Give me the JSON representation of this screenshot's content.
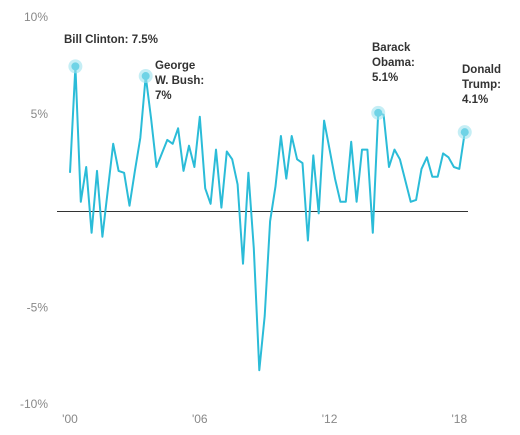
{
  "chart_data": {
    "type": "line",
    "x": [
      2000,
      2000.25,
      2000.5,
      2000.75,
      2001,
      2001.25,
      2001.5,
      2001.75,
      2002,
      2002.25,
      2002.5,
      2002.75,
      2003,
      2003.25,
      2003.5,
      2003.75,
      2004,
      2004.25,
      2004.5,
      2004.75,
      2005,
      2005.25,
      2005.5,
      2005.75,
      2006,
      2006.25,
      2006.5,
      2006.75,
      2007,
      2007.25,
      2007.5,
      2007.75,
      2008,
      2008.25,
      2008.5,
      2008.75,
      2009,
      2009.25,
      2009.5,
      2009.75,
      2010,
      2010.25,
      2010.5,
      2010.75,
      2011,
      2011.25,
      2011.5,
      2011.75,
      2012,
      2012.25,
      2012.5,
      2012.75,
      2013,
      2013.25,
      2013.5,
      2013.75,
      2014,
      2014.25,
      2014.5,
      2014.75,
      2015,
      2015.25,
      2015.5,
      2015.75,
      2016,
      2016.25,
      2016.5,
      2016.75,
      2017,
      2017.25,
      2017.5,
      2017.75,
      2018,
      2018.25
    ],
    "series": [
      {
        "color": "#2bbcd8",
        "values": [
          2,
          7.5,
          0.5,
          2.3,
          -1.1,
          2.1,
          -1.3,
          1.1,
          3.5,
          2.1,
          2.0,
          0.3,
          2.1,
          3.8,
          7,
          4.8,
          2.3,
          3.0,
          3.7,
          3.5,
          4.3,
          2.1,
          3.4,
          2.3,
          4.9,
          1.2,
          0.4,
          3.2,
          0.2,
          3.1,
          2.7,
          1.4,
          -2.7,
          2.0,
          -1.9,
          -8.2,
          -5.4,
          -0.5,
          1.3,
          3.9,
          1.7,
          3.9,
          2.7,
          2.5,
          -1.5,
          2.9,
          -0.1,
          4.7,
          3.2,
          1.7,
          0.5,
          0.5,
          3.6,
          0.5,
          3.2,
          3.2,
          -1.1,
          5.1,
          5.0,
          2.3,
          3.2,
          2.7,
          1.6,
          0.5,
          0.6,
          2.2,
          2.8,
          1.8,
          1.8,
          3.0,
          2.8,
          2.3,
          2.2,
          4.1
        ]
      }
    ],
    "xlim": [
      1999.4,
      2018.4
    ],
    "xticks": [
      {
        "value": 2000,
        "label": "'00"
      },
      {
        "value": 2006,
        "label": "'06"
      },
      {
        "value": 2012,
        "label": "'12"
      },
      {
        "value": 2018,
        "label": "'18"
      }
    ],
    "ylim": [
      -10,
      10
    ],
    "yticks": [
      {
        "value": -10,
        "label": "-10%"
      },
      {
        "value": -5,
        "label": "-5%"
      },
      {
        "value": 5,
        "label": "5%"
      },
      {
        "value": 10,
        "label": "10%"
      }
    ],
    "annotations": [
      {
        "lines": [
          "Bill Clinton: 7.5%"
        ],
        "x": 2000.25
      },
      {
        "lines": [
          "George",
          "W. Bush:",
          "7%"
        ],
        "x": 2003.5
      },
      {
        "lines": [
          "Barack",
          "Obama:",
          "5.1%"
        ],
        "x": 2014.25
      },
      {
        "lines": [
          "Donald",
          "Trump:",
          "4.1%"
        ],
        "x": 2018.25
      }
    ]
  }
}
